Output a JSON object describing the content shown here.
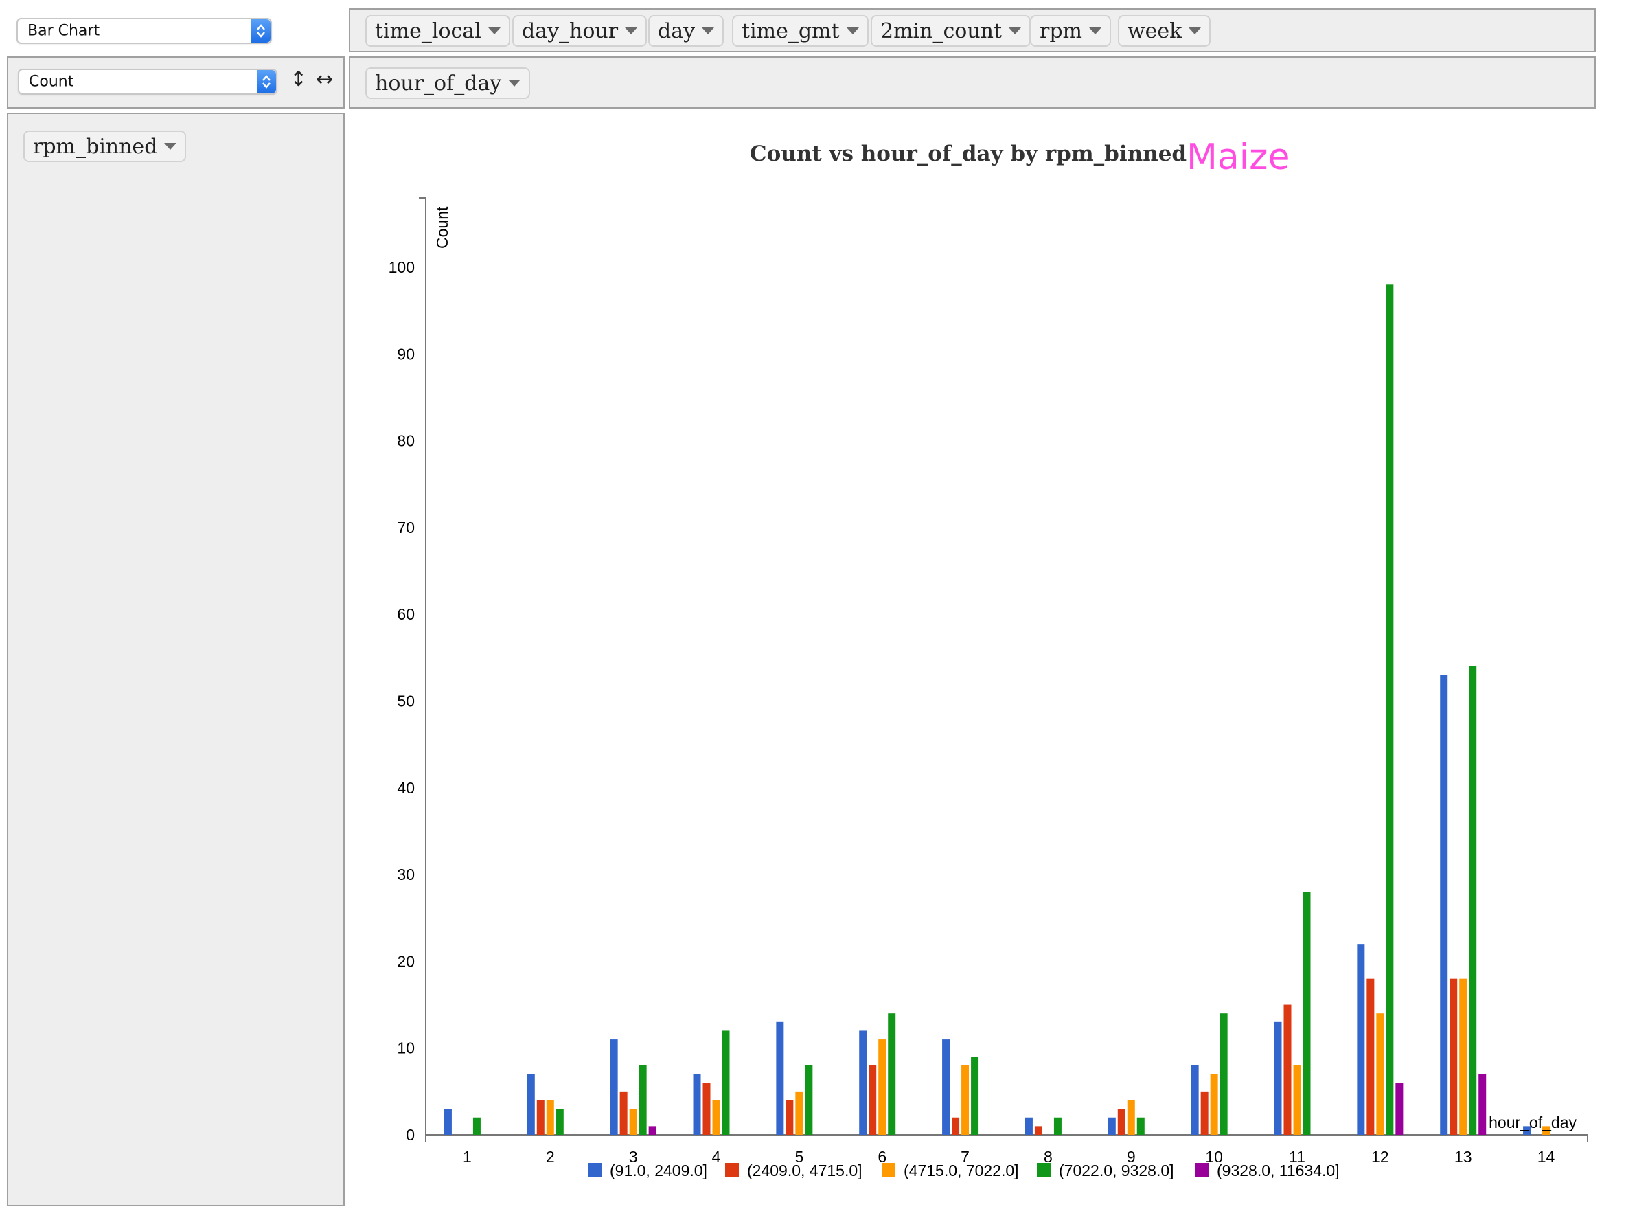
{
  "renderer": {
    "label": "Bar Chart"
  },
  "aggregator": {
    "label": "Count"
  },
  "unused_attributes": [
    "time_local",
    "day_hour",
    "day",
    "time_gmt",
    "2min_count",
    "rpm",
    "week"
  ],
  "col_attributes": [
    "hour_of_day"
  ],
  "row_attributes": [
    "rpm_binned"
  ],
  "brand": {
    "text": "Maize",
    "color": "#ff4de1"
  },
  "chart_data": {
    "type": "bar",
    "title": "Count vs hour_of_day by rpm_binned",
    "xlabel": "hour_of_day",
    "ylabel": "Count",
    "categories": [
      "1",
      "2",
      "3",
      "4",
      "5",
      "6",
      "7",
      "8",
      "9",
      "10",
      "11",
      "12",
      "13",
      "14"
    ],
    "ylim": [
      0,
      108
    ],
    "yticks": [
      0,
      10,
      20,
      30,
      40,
      50,
      60,
      70,
      80,
      90,
      100
    ],
    "grid": false,
    "legend_position": "bottom",
    "series": [
      {
        "name": "(91.0, 2409.0]",
        "color": "#3366cc",
        "values": [
          3,
          7,
          11,
          7,
          13,
          12,
          11,
          2,
          2,
          8,
          13,
          22,
          53,
          1
        ]
      },
      {
        "name": "(2409.0, 4715.0]",
        "color": "#dc3912",
        "values": [
          0,
          4,
          5,
          6,
          4,
          8,
          2,
          1,
          3,
          5,
          15,
          18,
          18,
          0
        ]
      },
      {
        "name": "(4715.0, 7022.0]",
        "color": "#ff9900",
        "values": [
          0,
          4,
          3,
          4,
          5,
          11,
          8,
          0,
          4,
          7,
          8,
          14,
          18,
          1
        ]
      },
      {
        "name": "(7022.0, 9328.0]",
        "color": "#109618",
        "values": [
          2,
          3,
          8,
          12,
          8,
          14,
          9,
          2,
          2,
          14,
          28,
          98,
          54,
          0
        ]
      },
      {
        "name": "(9328.0, 11634.0]",
        "color": "#990099",
        "values": [
          0,
          0,
          1,
          0,
          0,
          0,
          0,
          0,
          0,
          0,
          0,
          6,
          7,
          0
        ]
      }
    ]
  }
}
